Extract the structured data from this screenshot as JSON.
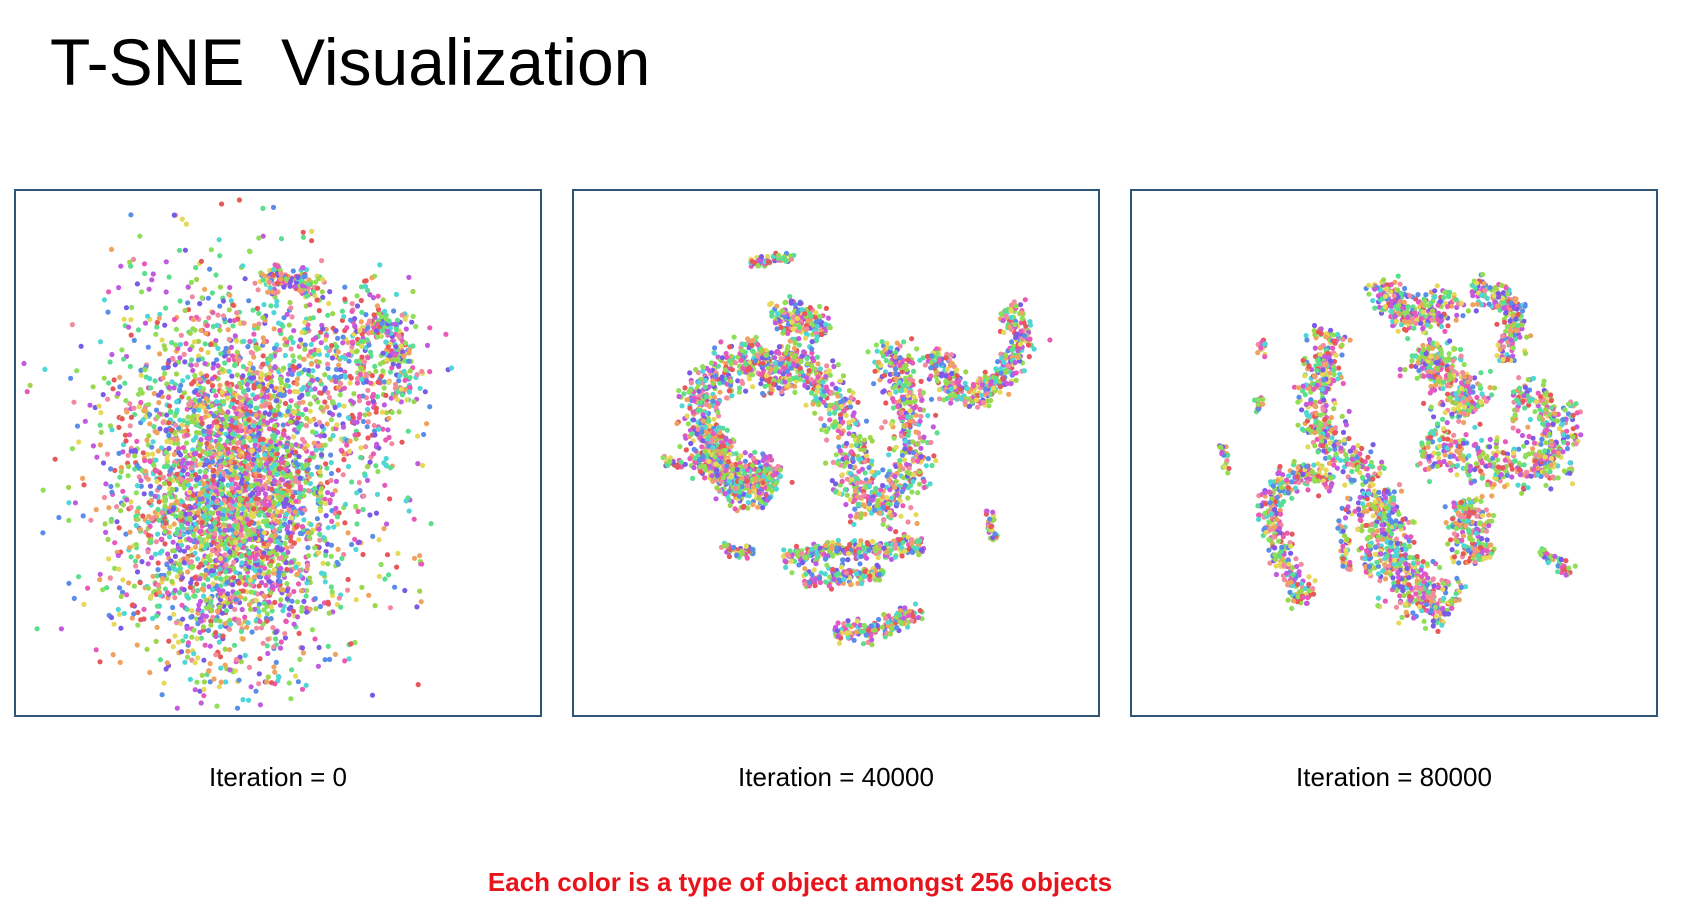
{
  "slide": {
    "title": "T-SNE  Visualization",
    "note": "Each color is a type of object amongst 256 objects"
  },
  "chart_data": [
    {
      "type": "scatter",
      "caption": "Iteration = 0",
      "iteration": 0,
      "title": "",
      "xlabel": "",
      "ylabel": "",
      "grid": false,
      "legend": "none",
      "num_classes": 256,
      "shape": "single dense diffuse blob with loose outlying points"
    },
    {
      "type": "scatter",
      "caption": "Iteration = 40000",
      "iteration": 40000,
      "title": "",
      "xlabel": "",
      "ylabel": "",
      "grid": false,
      "legend": "none",
      "num_classes": 256,
      "shape": "curved serpentine bands with a few separated arcs"
    },
    {
      "type": "scatter",
      "caption": "Iteration = 80000",
      "iteration": 80000,
      "title": "",
      "xlabel": "",
      "ylabel": "",
      "grid": false,
      "legend": "none",
      "num_classes": 256,
      "shape": "many distinct curved clusters radiating around a center"
    }
  ],
  "palette": [
    "#e8575a",
    "#f0a35e",
    "#e6d95a",
    "#8ee05a",
    "#5adf8e",
    "#4fd6d6",
    "#5a8de8",
    "#7a5ae8",
    "#c25ae0",
    "#e85ab8",
    "#f28aa0",
    "#9cd64a"
  ]
}
